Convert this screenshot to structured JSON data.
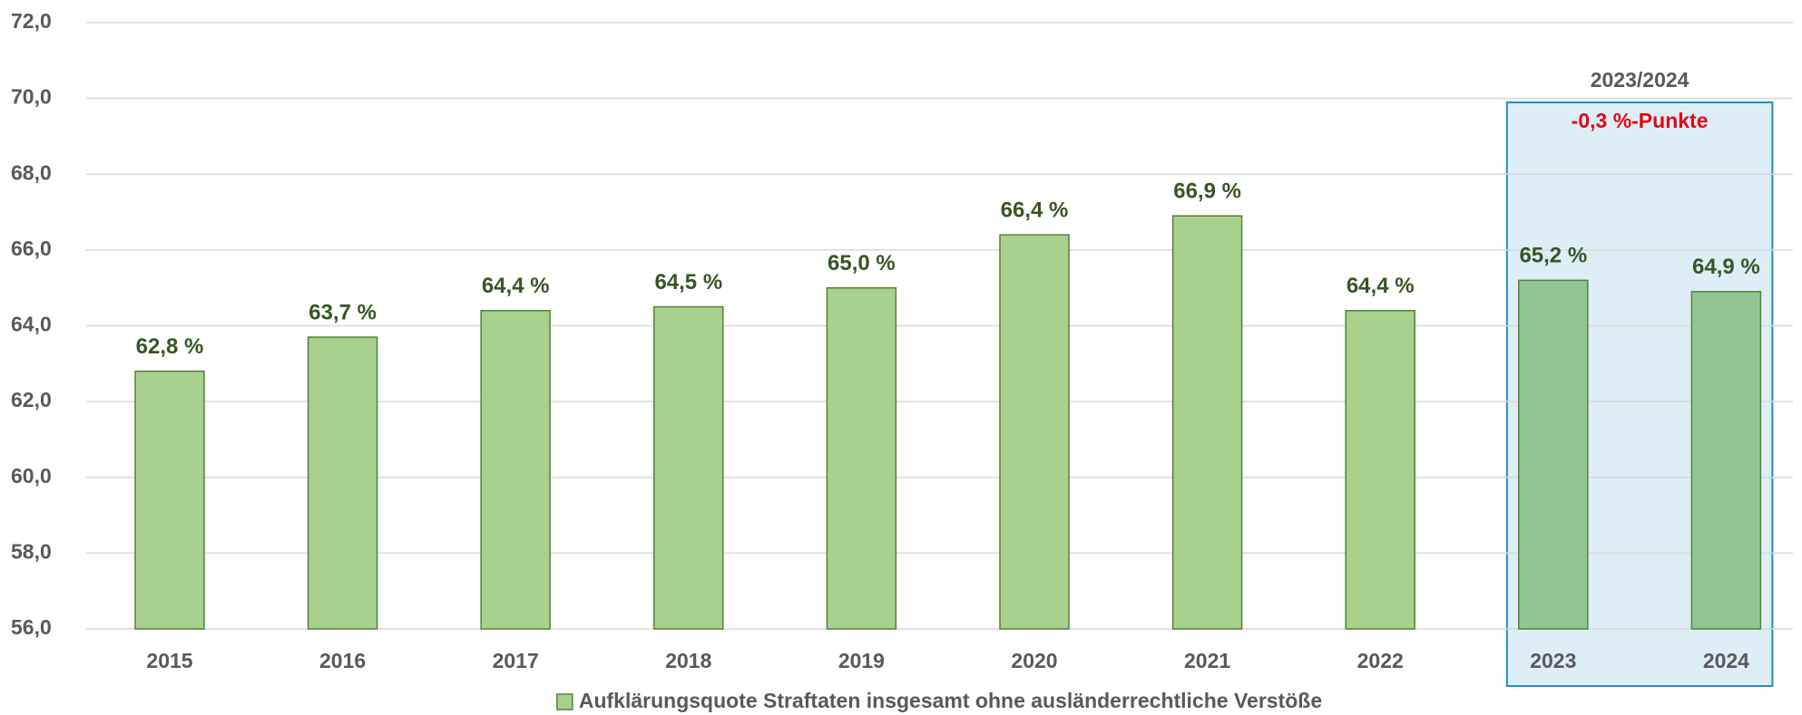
{
  "chart_data": {
    "type": "bar",
    "series_name": "Aufklärungsquote Straftaten insgesamt ohne ausländerrechtliche Verstöße",
    "categories": [
      "2015",
      "2016",
      "2017",
      "2018",
      "2019",
      "2020",
      "2021",
      "2022",
      "2023",
      "2024"
    ],
    "values": [
      62.8,
      63.7,
      64.4,
      64.5,
      65.0,
      66.4,
      66.9,
      64.4,
      65.2,
      64.9
    ],
    "value_labels": [
      "62,8 %",
      "63,7 %",
      "64,4 %",
      "64,5 %",
      "65,0 %",
      "66,4 %",
      "66,9 %",
      "64,4 %",
      "65,2 %",
      "64,9 %"
    ],
    "colors": [
      "#a9d18e",
      "#a9d18e",
      "#a9d18e",
      "#a9d18e",
      "#a9d18e",
      "#a9d18e",
      "#a9d18e",
      "#a9d18e",
      "#93c594",
      "#93c594"
    ],
    "color": "#a9d18e",
    "ylim": [
      56,
      72
    ],
    "yticks": [
      {
        "value": 56,
        "label": "56,0"
      },
      {
        "value": 58,
        "label": "58,0"
      },
      {
        "value": 60,
        "label": "60,0"
      },
      {
        "value": 62,
        "label": "62,0"
      },
      {
        "value": 64,
        "label": "64,0"
      },
      {
        "value": 66,
        "label": "66,0"
      },
      {
        "value": 68,
        "label": "68,0"
      },
      {
        "value": 70,
        "label": "70,0"
      },
      {
        "value": 72,
        "label": "72,0"
      }
    ],
    "grid": true,
    "annotation": {
      "title": "2023/2024",
      "text": "-0,3 %-Punkte"
    }
  }
}
